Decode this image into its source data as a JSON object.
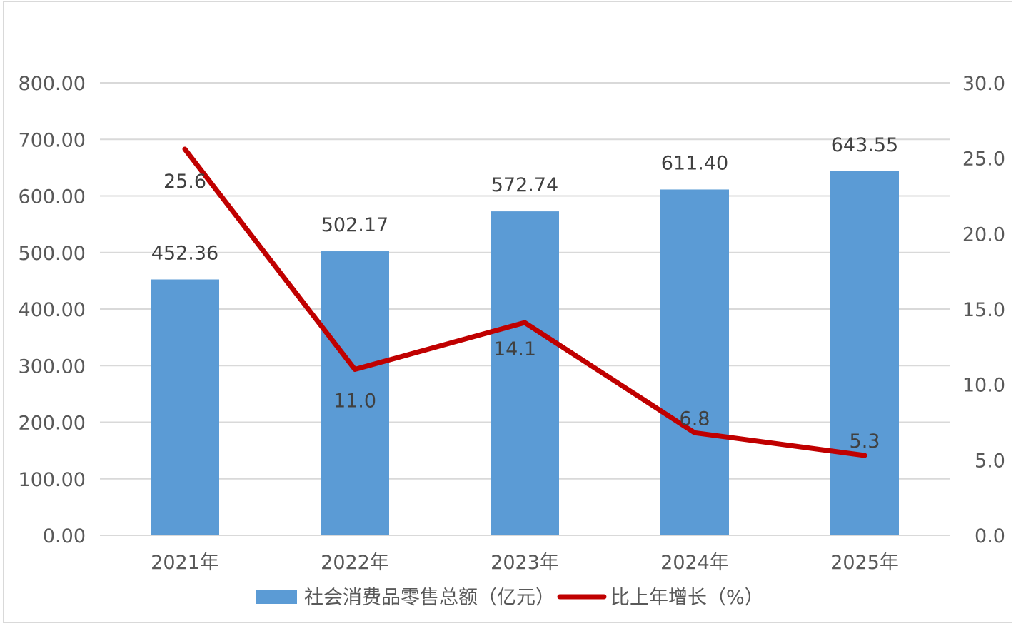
{
  "chart_data": {
    "type": "bar",
    "categories": [
      "2021年",
      "2022年",
      "2023年",
      "2024年",
      "2025年"
    ],
    "series": [
      {
        "name": "社会消费品零售总额（亿元）",
        "type": "bar",
        "axis": "left",
        "values": [
          452.36,
          502.17,
          572.74,
          611.4,
          643.55
        ],
        "labels": [
          "452.36",
          "502.17",
          "572.74",
          "611.40",
          "643.55"
        ],
        "color": "#5b9bd5"
      },
      {
        "name": "比上年增长（%）",
        "type": "line",
        "axis": "right",
        "values": [
          25.6,
          11.0,
          14.1,
          6.8,
          5.3
        ],
        "labels": [
          "25.6",
          "11.0",
          "14.1",
          "6.8",
          "5.3"
        ],
        "color": "#c00000"
      }
    ],
    "y_left": {
      "min": 0,
      "max": 800,
      "step": 100,
      "tick_labels": [
        "0.00",
        "100.00",
        "200.00",
        "300.00",
        "400.00",
        "500.00",
        "600.00",
        "700.00",
        "800.00"
      ]
    },
    "y_right": {
      "min": 0,
      "max": 30,
      "step": 5,
      "tick_labels": [
        "0.0",
        "5.0",
        "10.0",
        "15.0",
        "20.0",
        "25.0",
        "30.0"
      ]
    },
    "grid": true,
    "legend": "bottom",
    "grid_color": "#d9d9d9"
  }
}
